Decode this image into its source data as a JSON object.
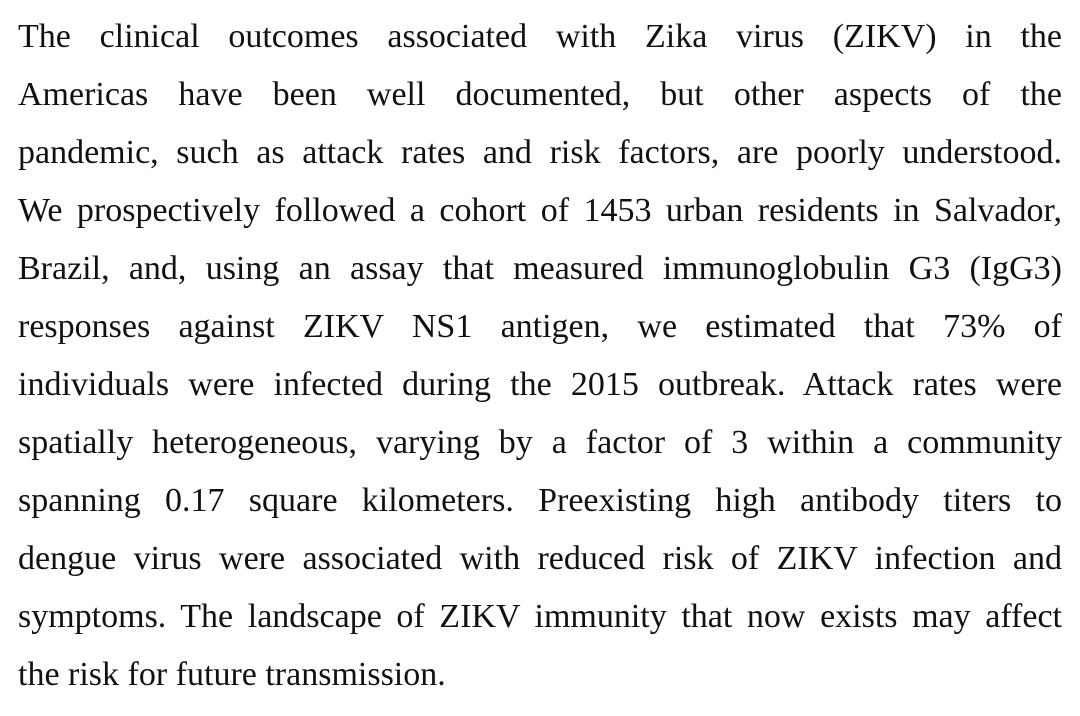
{
  "abstract": {
    "lines": [
      "The clinical outcomes associated with Zika virus (ZIKV) in the",
      "Americas have been well documented, but other aspects of the",
      "pandemic, such as attack rates and risk factors, are poorly understood.",
      "We prospectively followed a cohort of 1453 urban residents in Salvador,",
      "Brazil, and, using an assay that measured immunoglobulin G3 (IgG3)",
      "responses against ZIKV NS1 antigen, we estimated that 73% of",
      "individuals were infected during the 2015 outbreak. Attack rates were",
      "spatially heterogeneous, varying by a factor of 3 within a community",
      "spanning 0.17 square kilometers. Preexisting high antibody titers to",
      "dengue virus were associated with reduced risk of ZIKV infection and",
      "symptoms. The landscape of ZIKV immunity that now exists may affect",
      "the risk for future transmission."
    ]
  }
}
